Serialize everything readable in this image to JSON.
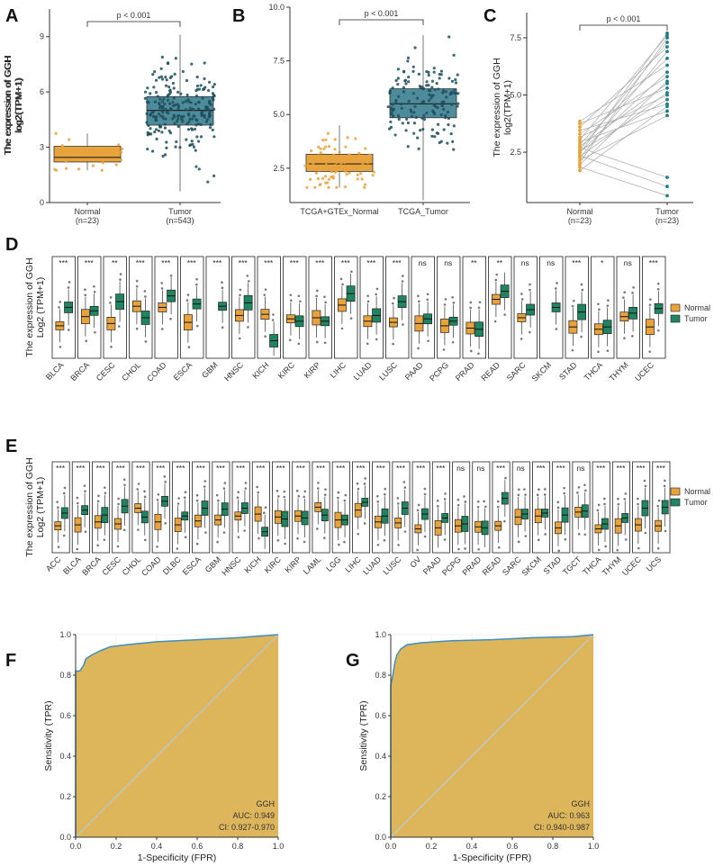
{
  "panel_letters": [
    "A",
    "B",
    "C",
    "D",
    "E",
    "F",
    "G"
  ],
  "colors": {
    "normal": "#E8A33D",
    "tumor": "#1F8560",
    "box_normal": "#E8A33D",
    "box_tumor": "#4E8C9C",
    "roc_fill": "#DDB65C",
    "roc_line": "#3E8FC0",
    "diag": "#B9C9D6",
    "pair_line": "#AAAAAA"
  },
  "chart_data": [
    {
      "id": "A",
      "type": "box",
      "title": "",
      "ylabel": [
        "The expression of GGH",
        "log2(TPM+1)"
      ],
      "ylim": [
        0,
        10.5
      ],
      "yticks": [
        0,
        3,
        6,
        9
      ],
      "categories": [
        "Normal\n(n=23)",
        "Tumor\n(n=543)"
      ],
      "cat_lines": [
        [
          "Normal",
          "(n=23)"
        ],
        [
          "Tumor",
          "(n=543)"
        ]
      ],
      "boxes": [
        {
          "q1": 2.2,
          "median": 2.45,
          "q3": 3.05,
          "min": 1.75,
          "max": 3.75,
          "n": 23
        },
        {
          "q1": 4.2,
          "median": 5.0,
          "q3": 5.75,
          "min": 0.6,
          "max": 9.1,
          "n": 220
        }
      ],
      "annotation": "p < 0.001"
    },
    {
      "id": "B",
      "type": "box",
      "title": "",
      "ylabel": [
        "The expression of GGH",
        "log2(TPM+1)"
      ],
      "ylim": [
        0.9,
        10.0
      ],
      "yticks": [
        2.5,
        5.0,
        7.5,
        10.0
      ],
      "categories": [
        "TCGA+GTEx_Normal",
        "TCGA_Tumor"
      ],
      "cat_lines": [
        [
          "TCGA+GTEx_Normal"
        ],
        [
          "TCGA_Tumor"
        ]
      ],
      "boxes": [
        {
          "q1": 2.35,
          "median": 2.7,
          "q3": 3.15,
          "min": 1.6,
          "max": 4.5,
          "n": 90
        },
        {
          "q1": 4.85,
          "median": 5.5,
          "q3": 6.2,
          "min": 1.0,
          "max": 8.7,
          "n": 150
        }
      ],
      "annotation": "p < 0.001"
    },
    {
      "id": "C",
      "type": "paired",
      "title": "",
      "ylabel": [
        "The expression of GGH",
        "log2(TPM+1)"
      ],
      "ylim": [
        0.3,
        8.6
      ],
      "yticks": [
        2.5,
        5.0,
        7.5
      ],
      "categories": [
        "Normal\n(n=23)",
        "Tumor\n(n=23)"
      ],
      "cat_lines": [
        [
          "Normal",
          "(n=23)"
        ],
        [
          "Tumor",
          "(n=23)"
        ]
      ],
      "normal": [
        1.7,
        1.85,
        1.95,
        2.05,
        2.15,
        2.25,
        2.3,
        2.35,
        2.45,
        2.5,
        2.55,
        2.6,
        2.7,
        2.75,
        2.85,
        2.95,
        3.05,
        3.15,
        3.3,
        3.45,
        3.6,
        3.75,
        3.85
      ],
      "tumor": [
        0.6,
        1.0,
        1.4,
        4.1,
        4.3,
        4.5,
        4.6,
        4.8,
        5.0,
        5.1,
        5.3,
        5.5,
        5.6,
        5.8,
        6.0,
        6.3,
        6.6,
        6.9,
        7.1,
        7.3,
        7.5,
        7.6,
        7.7
      ],
      "annotation": "p < 0.001"
    },
    {
      "id": "D",
      "type": "grouped_box",
      "ylabel": [
        "The expression of GGH",
        "Log2 (TPM+1)"
      ],
      "legend": {
        "entries": [
          "Normal",
          "Tumor"
        ],
        "position": "right"
      },
      "categories": [
        "BLCA",
        "BRCA",
        "CESC",
        "CHOL",
        "COAD",
        "ESCA",
        "GBM",
        "HNSC",
        "KICH",
        "KIRC",
        "KIRP",
        "LIHC",
        "LUAD",
        "LUSC",
        "PAAD",
        "PCPG",
        "PRAD",
        "READ",
        "SARC",
        "SKCM",
        "STAD",
        "THCA",
        "THYM",
        "UCEC"
      ],
      "significance": [
        "***",
        "***",
        "**",
        "***",
        "***",
        "***",
        "***",
        "***",
        "***",
        "***",
        "***",
        "***",
        "***",
        "***",
        "ns",
        "ns",
        "**",
        "**",
        "ns",
        "ns",
        "***",
        "*",
        "ns",
        "***"
      ],
      "normal_median": [
        2.2,
        3.0,
        2.4,
        3.9,
        3.8,
        2.5,
        null,
        3.1,
        3.2,
        2.8,
        2.9,
        4.0,
        2.6,
        2.5,
        2.4,
        2.2,
        2.0,
        4.5,
        2.9,
        null,
        2.1,
        1.9,
        3.0,
        2.1
      ],
      "tumor_median": [
        3.8,
        3.5,
        4.3,
        2.9,
        4.8,
        4.1,
        3.9,
        4.2,
        0.9,
        2.6,
        2.6,
        5.0,
        3.1,
        4.3,
        2.8,
        2.6,
        1.9,
        5.2,
        3.6,
        3.8,
        3.4,
        2.1,
        3.3,
        3.7
      ]
    },
    {
      "id": "E",
      "type": "grouped_box",
      "ylabel": [
        "The expression of GGH",
        "Log2 (TPM+1)"
      ],
      "legend": {
        "entries": [
          "Normal",
          "Tumor"
        ],
        "position": "right"
      },
      "categories": [
        "ACC",
        "BLCA",
        "BRCA",
        "CESC",
        "CHOL",
        "COAD",
        "DLBC",
        "ESCA",
        "GBM",
        "HNSC",
        "KICH",
        "KIRC",
        "KIRP",
        "LAML",
        "LGG",
        "LIHC",
        "LUAD",
        "LUSC",
        "OV",
        "PAAD",
        "PCPG",
        "PRAD",
        "READ",
        "SARC",
        "SKCM",
        "STAD",
        "TGCT",
        "THCA",
        "THYM",
        "UCEC",
        "UCS"
      ],
      "significance": [
        "***",
        "***",
        "***",
        "***",
        "***",
        "***",
        "***",
        "***",
        "***",
        "***",
        "***",
        "***",
        "***",
        "***",
        "***",
        "***",
        "***",
        "***",
        "***",
        "***",
        "ns",
        "ns",
        "***",
        "ns",
        "***",
        "***",
        "ns",
        "***",
        "***",
        "***",
        "***"
      ],
      "normal_median": [
        2.0,
        2.1,
        2.4,
        2.2,
        3.8,
        2.4,
        2.1,
        2.5,
        2.6,
        3.0,
        3.2,
        2.9,
        3.0,
        3.9,
        2.6,
        3.6,
        2.4,
        2.3,
        1.7,
        1.8,
        2.0,
        1.9,
        2.0,
        2.9,
        3.0,
        1.8,
        3.4,
        1.7,
        2.0,
        2.1,
        2.0
      ],
      "tumor_median": [
        3.3,
        3.6,
        3.1,
        4.0,
        2.9,
        4.5,
        3.0,
        3.8,
        3.7,
        3.8,
        1.4,
        2.7,
        2.8,
        3.1,
        2.6,
        4.4,
        3.0,
        3.8,
        3.2,
        2.8,
        2.2,
        1.8,
        4.8,
        3.2,
        3.3,
        3.1,
        3.5,
        2.2,
        2.8,
        3.8,
        3.9
      ]
    },
    {
      "id": "F",
      "type": "roc",
      "xlabel": "1-Specificity (FPR)",
      "ylabel": "Sensitivity (TPR)",
      "xlim": [
        0,
        1
      ],
      "ylim": [
        0,
        1
      ],
      "xticks": [
        "0.0",
        "0.2",
        "0.4",
        "0.6",
        "0.8",
        "1.0"
      ],
      "yticks": [
        "0.0",
        "0.2",
        "0.4",
        "0.6",
        "0.8",
        "1.0"
      ],
      "curve": [
        [
          0,
          0
        ],
        [
          0,
          0.82
        ],
        [
          0.02,
          0.82
        ],
        [
          0.04,
          0.85
        ],
        [
          0.05,
          0.88
        ],
        [
          0.08,
          0.9
        ],
        [
          0.12,
          0.92
        ],
        [
          0.17,
          0.94
        ],
        [
          0.25,
          0.95
        ],
        [
          0.4,
          0.965
        ],
        [
          0.6,
          0.975
        ],
        [
          0.8,
          0.985
        ],
        [
          1,
          1
        ]
      ],
      "legend_lines": [
        "GGH",
        "AUC: 0.949",
        "CI: 0.927-0.970"
      ]
    },
    {
      "id": "G",
      "type": "roc",
      "xlabel": "1-Specificity (FPR)",
      "ylabel": "Sensitivity (TPR)",
      "xlim": [
        0,
        1
      ],
      "ylim": [
        0,
        1
      ],
      "xticks": [
        "0.0",
        "0.2",
        "0.4",
        "0.6",
        "0.8",
        "1.0"
      ],
      "yticks": [
        "0.0",
        "0.2",
        "0.4",
        "0.6",
        "0.8",
        "1.0"
      ],
      "curve": [
        [
          0,
          0
        ],
        [
          0,
          0.75
        ],
        [
          0.01,
          0.8
        ],
        [
          0.02,
          0.86
        ],
        [
          0.03,
          0.9
        ],
        [
          0.05,
          0.93
        ],
        [
          0.08,
          0.95
        ],
        [
          0.15,
          0.96
        ],
        [
          0.3,
          0.97
        ],
        [
          0.5,
          0.975
        ],
        [
          0.7,
          0.985
        ],
        [
          0.9,
          0.99
        ],
        [
          1,
          1
        ]
      ],
      "legend_lines": [
        "GGH",
        "AUC: 0.963",
        "CI: 0.940-0.987"
      ]
    }
  ]
}
